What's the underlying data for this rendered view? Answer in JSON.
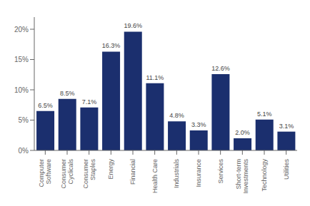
{
  "chart_data": {
    "type": "bar",
    "categories": [
      "Computer\nSoftware",
      "Consumer\nCyclicals",
      "Consumer\nStaples",
      "Energy",
      "Financial",
      "Health Care",
      "Industrials",
      "Insurance",
      "Services",
      "Short-term\nInvestments",
      "Technology",
      "Utilities"
    ],
    "values": [
      6.5,
      8.5,
      7.1,
      16.3,
      19.6,
      11.1,
      4.8,
      3.3,
      12.6,
      2.0,
      5.1,
      3.1
    ],
    "value_labels": [
      "6.5%",
      "8.5%",
      "7.1%",
      "16.3%",
      "19.6%",
      "11.1%",
      "4.8%",
      "3.3%",
      "12.6%",
      "2.0%",
      "5.1%",
      "3.1%"
    ],
    "color": "#1b2f6e",
    "ylim": [
      0,
      22
    ],
    "yticks": [
      {
        "value": 0,
        "label": "0%"
      },
      {
        "value": 5,
        "label": "5%"
      },
      {
        "value": 10,
        "label": "10%"
      },
      {
        "value": 15,
        "label": "15%"
      },
      {
        "value": 20,
        "label": "20%"
      }
    ],
    "grid": false
  }
}
